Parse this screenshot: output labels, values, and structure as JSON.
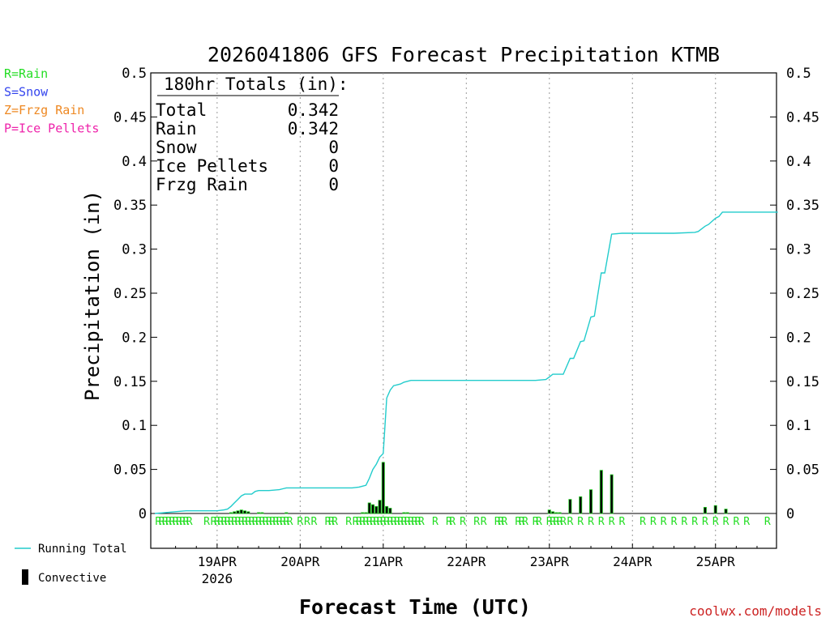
{
  "chart_data": {
    "type": "bar+line",
    "title": "2026041806 GFS Forecast Precipitation KTMB",
    "ylabel": "Precipitation (in)",
    "xlabel": "Forecast Time (UTC)",
    "watermark": "coolwx.com/models",
    "ylim": [
      -0.04,
      0.5
    ],
    "xlim_hours": [
      0,
      180
    ],
    "yticks": [
      0,
      0.05,
      0.1,
      0.15,
      0.2,
      0.25,
      0.3,
      0.35,
      0.4,
      0.45,
      0.5
    ],
    "ytick_labels": [
      "0",
      "0.05",
      "0.1",
      "0.15",
      "0.2",
      "0.25",
      "0.3",
      "0.35",
      "0.4",
      "0.45",
      "0.5"
    ],
    "date_ticks": [
      {
        "hour": 18,
        "label": "19APR",
        "sublabel": "2026"
      },
      {
        "hour": 42,
        "label": "20APR"
      },
      {
        "hour": 66,
        "label": "21APR"
      },
      {
        "hour": 90,
        "label": "22APR"
      },
      {
        "hour": 114,
        "label": "23APR"
      },
      {
        "hour": 138,
        "label": "24APR"
      },
      {
        "hour": 162,
        "label": "25APR"
      }
    ],
    "legend_types": [
      {
        "label": "R=Rain",
        "color": "#22dd22"
      },
      {
        "label": "S=Snow",
        "color": "#3344ee"
      },
      {
        "label": "Z=Frzg Rain",
        "color": "#ee8822"
      },
      {
        "label": "P=Ice Pellets",
        "color": "#ee22aa"
      }
    ],
    "legend_series": [
      {
        "label": "Running Total",
        "color": "#22cccc"
      },
      {
        "label": "Convective",
        "color": "#000000"
      }
    ],
    "totals": {
      "heading": "180hr Totals (in):",
      "rows": [
        {
          "label": "Total",
          "value": "0.342"
        },
        {
          "label": "Rain",
          "value": "0.342"
        },
        {
          "label": "Snow",
          "value": "0"
        },
        {
          "label": "Ice Pellets",
          "value": "0"
        },
        {
          "label": "Frzg Rain",
          "value": "0"
        }
      ]
    },
    "running_total": [
      [
        0,
        0
      ],
      [
        3,
        0.001
      ],
      [
        6,
        0.002
      ],
      [
        9,
        0.003
      ],
      [
        12,
        0.003
      ],
      [
        15,
        0.003
      ],
      [
        18,
        0.003
      ],
      [
        20,
        0.004
      ],
      [
        21,
        0.005
      ],
      [
        22,
        0.008
      ],
      [
        23,
        0.012
      ],
      [
        24,
        0.016
      ],
      [
        25,
        0.02
      ],
      [
        26,
        0.022
      ],
      [
        27,
        0.022
      ],
      [
        28,
        0.022
      ],
      [
        29,
        0.025
      ],
      [
        30,
        0.026
      ],
      [
        33,
        0.026
      ],
      [
        36,
        0.027
      ],
      [
        37,
        0.028
      ],
      [
        38,
        0.029
      ],
      [
        42,
        0.029
      ],
      [
        48,
        0.029
      ],
      [
        54,
        0.029
      ],
      [
        57,
        0.029
      ],
      [
        59,
        0.03
      ],
      [
        60,
        0.031
      ],
      [
        61,
        0.032
      ],
      [
        62,
        0.04
      ],
      [
        63,
        0.05
      ],
      [
        64,
        0.056
      ],
      [
        65,
        0.064
      ],
      [
        66,
        0.068
      ],
      [
        66.5,
        0.1
      ],
      [
        67,
        0.131
      ],
      [
        68,
        0.14
      ],
      [
        69,
        0.145
      ],
      [
        70,
        0.146
      ],
      [
        71,
        0.147
      ],
      [
        72,
        0.149
      ],
      [
        73,
        0.15
      ],
      [
        74,
        0.151
      ],
      [
        75,
        0.151
      ],
      [
        80,
        0.151
      ],
      [
        90,
        0.151
      ],
      [
        100,
        0.151
      ],
      [
        110,
        0.151
      ],
      [
        113,
        0.152
      ],
      [
        114,
        0.155
      ],
      [
        115,
        0.158
      ],
      [
        116,
        0.158
      ],
      [
        117,
        0.158
      ],
      [
        118,
        0.158
      ],
      [
        120,
        0.176
      ],
      [
        121,
        0.176
      ],
      [
        123,
        0.195
      ],
      [
        124,
        0.196
      ],
      [
        126,
        0.223
      ],
      [
        127,
        0.224
      ],
      [
        129,
        0.273
      ],
      [
        130,
        0.273
      ],
      [
        132,
        0.317
      ],
      [
        135,
        0.318
      ],
      [
        140,
        0.318
      ],
      [
        150,
        0.318
      ],
      [
        156,
        0.319
      ],
      [
        157,
        0.32
      ],
      [
        159,
        0.326
      ],
      [
        160,
        0.328
      ],
      [
        162,
        0.335
      ],
      [
        163,
        0.337
      ],
      [
        164,
        0.342
      ],
      [
        170,
        0.342
      ],
      [
        180,
        0.342
      ]
    ],
    "convective_bars": [
      [
        22,
        0.001
      ],
      [
        23,
        0.002
      ],
      [
        24,
        0.003
      ],
      [
        25,
        0.004
      ],
      [
        26,
        0.003
      ],
      [
        27,
        0.002
      ],
      [
        30,
        0.001
      ],
      [
        31,
        0.001
      ],
      [
        38,
        0.001
      ],
      [
        60,
        0.001
      ],
      [
        61,
        0.001
      ],
      [
        62,
        0.012
      ],
      [
        63,
        0.01
      ],
      [
        64,
        0.008
      ],
      [
        65,
        0.015
      ],
      [
        66,
        0.058
      ],
      [
        67,
        0.008
      ],
      [
        68,
        0.006
      ],
      [
        72,
        0.001
      ],
      [
        73,
        0.001
      ],
      [
        114,
        0.004
      ],
      [
        115,
        0.002
      ],
      [
        116,
        0.001
      ],
      [
        117,
        0.001
      ],
      [
        120,
        0.016
      ],
      [
        123,
        0.019
      ],
      [
        126,
        0.027
      ],
      [
        129,
        0.049
      ],
      [
        132,
        0.044
      ],
      [
        159,
        0.007
      ],
      [
        162,
        0.009
      ],
      [
        165,
        0.005
      ]
    ],
    "type_marks": [
      {
        "hour": 1,
        "type": "R"
      },
      {
        "hour": 2,
        "type": "R"
      },
      {
        "hour": 3,
        "type": "R"
      },
      {
        "hour": 4,
        "type": "R"
      },
      {
        "hour": 5,
        "type": "R"
      },
      {
        "hour": 6,
        "type": "R"
      },
      {
        "hour": 7,
        "type": "R"
      },
      {
        "hour": 8,
        "type": "R"
      },
      {
        "hour": 9,
        "type": "R"
      },
      {
        "hour": 10,
        "type": "R"
      },
      {
        "hour": 15,
        "type": "R"
      },
      {
        "hour": 17,
        "type": "R"
      },
      {
        "hour": 18,
        "type": "R"
      },
      {
        "hour": 19,
        "type": "R"
      },
      {
        "hour": 20,
        "type": "R"
      },
      {
        "hour": 21,
        "type": "R"
      },
      {
        "hour": 22,
        "type": "R"
      },
      {
        "hour": 23,
        "type": "R"
      },
      {
        "hour": 24,
        "type": "R"
      },
      {
        "hour": 25,
        "type": "R"
      },
      {
        "hour": 26,
        "type": "R"
      },
      {
        "hour": 27,
        "type": "R"
      },
      {
        "hour": 28,
        "type": "R"
      },
      {
        "hour": 29,
        "type": "R"
      },
      {
        "hour": 30,
        "type": "R"
      },
      {
        "hour": 31,
        "type": "R"
      },
      {
        "hour": 32,
        "type": "R"
      },
      {
        "hour": 33,
        "type": "R"
      },
      {
        "hour": 34,
        "type": "R"
      },
      {
        "hour": 35,
        "type": "R"
      },
      {
        "hour": 36,
        "type": "R"
      },
      {
        "hour": 37,
        "type": "R"
      },
      {
        "hour": 38,
        "type": "R"
      },
      {
        "hour": 39,
        "type": "R"
      },
      {
        "hour": 42,
        "type": "R"
      },
      {
        "hour": 44,
        "type": "R"
      },
      {
        "hour": 46,
        "type": "R"
      },
      {
        "hour": 50,
        "type": "R"
      },
      {
        "hour": 51,
        "type": "R"
      },
      {
        "hour": 52,
        "type": "R"
      },
      {
        "hour": 56,
        "type": "R"
      },
      {
        "hour": 58,
        "type": "R"
      },
      {
        "hour": 59,
        "type": "R"
      },
      {
        "hour": 60,
        "type": "R"
      },
      {
        "hour": 61,
        "type": "R"
      },
      {
        "hour": 62,
        "type": "R"
      },
      {
        "hour": 63,
        "type": "R"
      },
      {
        "hour": 64,
        "type": "R"
      },
      {
        "hour": 65,
        "type": "R"
      },
      {
        "hour": 66,
        "type": "R"
      },
      {
        "hour": 67,
        "type": "R"
      },
      {
        "hour": 68,
        "type": "R"
      },
      {
        "hour": 69,
        "type": "R"
      },
      {
        "hour": 70,
        "type": "R"
      },
      {
        "hour": 71,
        "type": "R"
      },
      {
        "hour": 72,
        "type": "R"
      },
      {
        "hour": 73,
        "type": "R"
      },
      {
        "hour": 74,
        "type": "R"
      },
      {
        "hour": 75,
        "type": "R"
      },
      {
        "hour": 76,
        "type": "R"
      },
      {
        "hour": 77,
        "type": "R"
      },
      {
        "hour": 81,
        "type": "R"
      },
      {
        "hour": 85,
        "type": "R"
      },
      {
        "hour": 86,
        "type": "R"
      },
      {
        "hour": 89,
        "type": "R"
      },
      {
        "hour": 93,
        "type": "R"
      },
      {
        "hour": 95,
        "type": "R"
      },
      {
        "hour": 99,
        "type": "R"
      },
      {
        "hour": 100,
        "type": "R"
      },
      {
        "hour": 101,
        "type": "R"
      },
      {
        "hour": 105,
        "type": "R"
      },
      {
        "hour": 106,
        "type": "R"
      },
      {
        "hour": 107,
        "type": "R"
      },
      {
        "hour": 110,
        "type": "R"
      },
      {
        "hour": 111,
        "type": "R"
      },
      {
        "hour": 114,
        "type": "R"
      },
      {
        "hour": 115,
        "type": "R"
      },
      {
        "hour": 116,
        "type": "R"
      },
      {
        "hour": 117,
        "type": "R"
      },
      {
        "hour": 118,
        "type": "R"
      },
      {
        "hour": 120,
        "type": "R"
      },
      {
        "hour": 123,
        "type": "R"
      },
      {
        "hour": 126,
        "type": "R"
      },
      {
        "hour": 129,
        "type": "R"
      },
      {
        "hour": 132,
        "type": "R"
      },
      {
        "hour": 135,
        "type": "R"
      },
      {
        "hour": 141,
        "type": "R"
      },
      {
        "hour": 144,
        "type": "R"
      },
      {
        "hour": 147,
        "type": "R"
      },
      {
        "hour": 150,
        "type": "R"
      },
      {
        "hour": 153,
        "type": "R"
      },
      {
        "hour": 156,
        "type": "R"
      },
      {
        "hour": 159,
        "type": "R"
      },
      {
        "hour": 162,
        "type": "R"
      },
      {
        "hour": 165,
        "type": "R"
      },
      {
        "hour": 168,
        "type": "R"
      },
      {
        "hour": 171,
        "type": "R"
      },
      {
        "hour": 177,
        "type": "R"
      }
    ],
    "colors": {
      "rain": "#22dd22",
      "line": "#22cccc",
      "bar_fill": "#000000",
      "bar_edge": "#22cc22",
      "grid": "#999999",
      "watermark": "#cc2222"
    }
  }
}
